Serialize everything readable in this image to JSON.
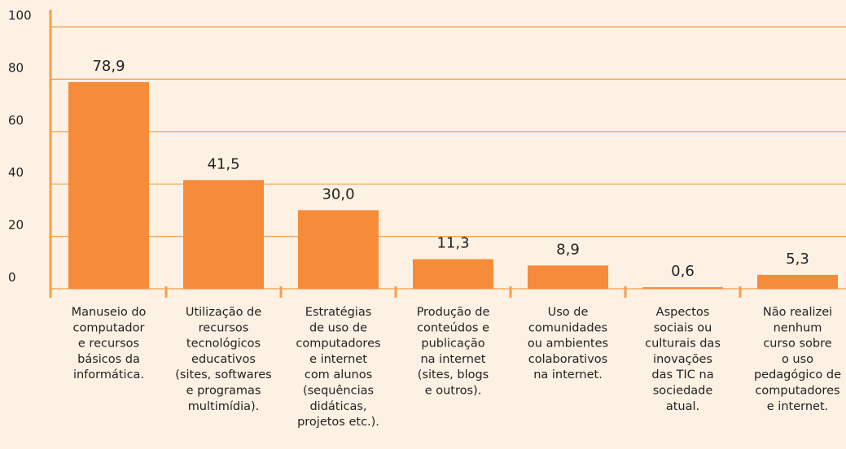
{
  "chart_data": {
    "type": "bar",
    "categories": [
      "Manuseio do\ncomputador\ne recursos\nbásicos da\ninformática.",
      "Utilização de\nrecursos\ntecnológicos\neducativos\n(sites, softwares\ne programas\nmultimídia).",
      "Estratégias\nde uso de\ncomputadores\ne internet\ncom alunos\n(sequências\ndidáticas,\nprojetos etc.).",
      "Produção de\nconteúdos e\npublicação\nna internet\n(sites, blogs\ne outros).",
      "Uso de\ncomunidades\nou ambientes\ncolaborativos\nna internet.",
      "Aspectos\nsociais ou\nculturais das\ninovações\ndas TIC na\nsociedade\natual.",
      "Não realizei\nnenhum\ncurso sobre\no uso\npedagógico de\ncomputadores\ne internet."
    ],
    "values": [
      78.9,
      41.5,
      30.0,
      11.3,
      8.9,
      0.6,
      5.3
    ],
    "value_labels": [
      "78,9",
      "41,5",
      "30,0",
      "11,3",
      "8,9",
      "0,6",
      "5,3"
    ],
    "color": "#f68b3a",
    "ylim": [
      0,
      100
    ],
    "yticks": [
      0,
      20,
      40,
      60,
      80,
      100
    ],
    "grid": true,
    "grid_color": "#f5a04a"
  }
}
